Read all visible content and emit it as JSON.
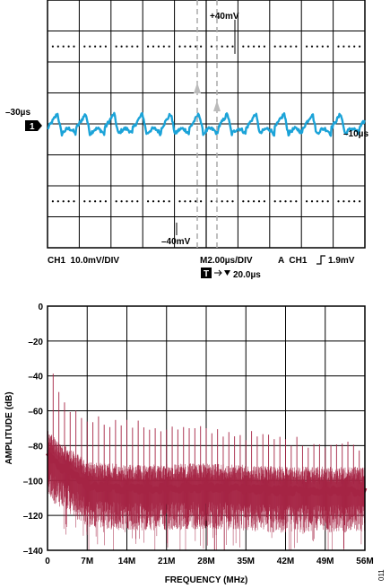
{
  "chart_data": [
    {
      "type": "line",
      "grid": true,
      "annotations": {
        "plus40": "+40mV",
        "minus40": "–40mV",
        "minus30us": "–30µs",
        "minus10us": "–10µs",
        "ch_marker": "1"
      },
      "footer": {
        "ch_scale": "CH1  10.0mV/DIV",
        "time_scale": "M2.00µs/DIV",
        "trigger": "A  CH1",
        "trigger_level": "1.9mV",
        "t_marker": "T",
        "delay": "20.0µs"
      },
      "series": [
        {
          "color": "#1ba3d8",
          "x_range_div": [
            0,
            10
          ],
          "periodic_peaks_per_div": 1.12,
          "offset_div": 0.0,
          "peak_amplitude_div": 0.35
        }
      ]
    },
    {
      "type": "line",
      "xlabel": "FREQUENCY (MHz)",
      "ylabel": "AMPLITUDE (dB)",
      "xlim": [
        0,
        56
      ],
      "ylim": [
        -140,
        0
      ],
      "grid": true,
      "xticks": [
        "0",
        "7M",
        "14M",
        "21M",
        "28M",
        "35M",
        "42M",
        "49M",
        "56M"
      ],
      "yticks": [
        "0",
        "–20",
        "–40",
        "–60",
        "–80",
        "–100",
        "–120",
        "–140"
      ],
      "noise_floor": [
        {
          "x": 0,
          "y": -85
        },
        {
          "x": 2,
          "y": -92
        },
        {
          "x": 4,
          "y": -95
        },
        {
          "x": 7,
          "y": -103
        },
        {
          "x": 14,
          "y": -105
        },
        {
          "x": 28,
          "y": -104
        },
        {
          "x": 42,
          "y": -106
        },
        {
          "x": 56,
          "y": -106
        }
      ],
      "spur_spacing_mhz": 1.0,
      "spur_levels": [
        {
          "x": 0,
          "y": -30
        },
        {
          "x": 1,
          "y": -40
        },
        {
          "x": 2,
          "y": -48
        },
        {
          "x": 3,
          "y": -55
        },
        {
          "x": 5,
          "y": -62
        },
        {
          "x": 10,
          "y": -66
        },
        {
          "x": 20,
          "y": -70
        },
        {
          "x": 30,
          "y": -72
        },
        {
          "x": 45,
          "y": -78
        },
        {
          "x": 56,
          "y": -80
        }
      ],
      "series_color": "#a52444"
    }
  ],
  "figure_id": "011"
}
